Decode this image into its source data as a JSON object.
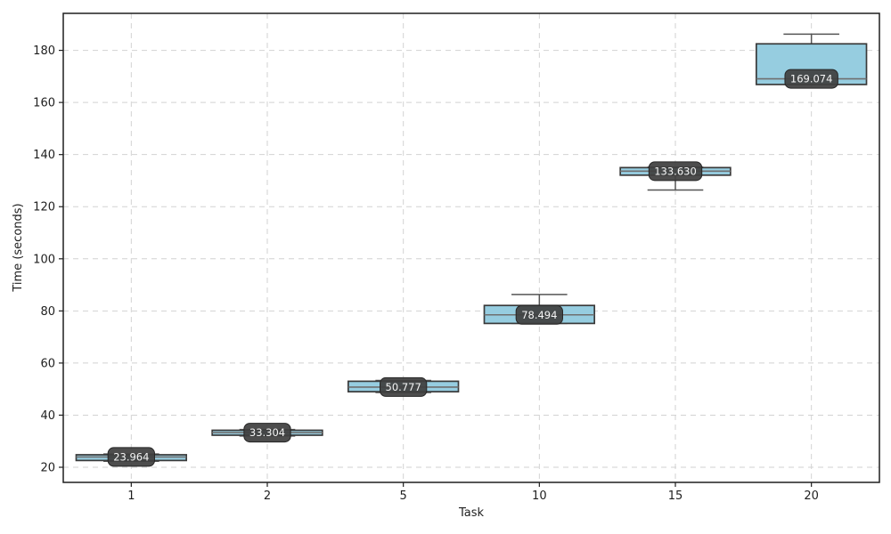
{
  "figure": {
    "background": "#ffffff"
  },
  "chart_data": {
    "type": "boxplot",
    "title": "",
    "xlabel": "Task",
    "ylabel": "Time (seconds)",
    "categories": [
      "1",
      "2",
      "5",
      "10",
      "15",
      "20"
    ],
    "positions": [
      1,
      2,
      3,
      4,
      5,
      6
    ],
    "xlim": [
      0.5,
      6.5
    ],
    "ylim": [
      14.2,
      194.2
    ],
    "yticks": [
      20,
      40,
      60,
      80,
      100,
      120,
      140,
      160,
      180
    ],
    "grid": {
      "visible": true,
      "linestyle": "dashed",
      "axis": "both"
    },
    "legend_position": "none",
    "box_width_data_units": 0.81,
    "cap_width_data_units": 0.41,
    "colors": {
      "box_fill": "#96cde0",
      "box_edge": "#3a3a3a",
      "whisker": "#555555",
      "cap": "#555555",
      "median_line": "#6f6f6f",
      "grid": "#d2d2d2",
      "spine": "#1f1f1f",
      "tick_text": "#1f1f1f",
      "label_bg": "#3f4040",
      "label_border": "#262626",
      "label_text": "#f5f5f5"
    },
    "series": [
      {
        "category": "1",
        "whislo": 22.3,
        "q1": 22.6,
        "median": 23.964,
        "q3": 24.8,
        "whishi": 25.1,
        "label": "23.964"
      },
      {
        "category": "2",
        "whislo": 32.0,
        "q1": 32.3,
        "median": 33.304,
        "q3": 34.2,
        "whishi": 34.5,
        "label": "33.304"
      },
      {
        "category": "5",
        "whislo": 48.7,
        "q1": 49.0,
        "median": 50.777,
        "q3": 53.0,
        "whishi": 53.3,
        "label": "50.777"
      },
      {
        "category": "10",
        "whislo": 75.2,
        "q1": 75.2,
        "median": 78.494,
        "q3": 82.1,
        "whishi": 86.3,
        "label": "78.494"
      },
      {
        "category": "15",
        "whislo": 126.4,
        "q1": 132.1,
        "median": 133.63,
        "q3": 135.0,
        "whishi": 135.2,
        "label": "133.630"
      },
      {
        "category": "20",
        "whislo": 166.9,
        "q1": 166.9,
        "median": 169.074,
        "q3": 182.5,
        "whishi": 186.2,
        "label": "169.074"
      }
    ]
  }
}
